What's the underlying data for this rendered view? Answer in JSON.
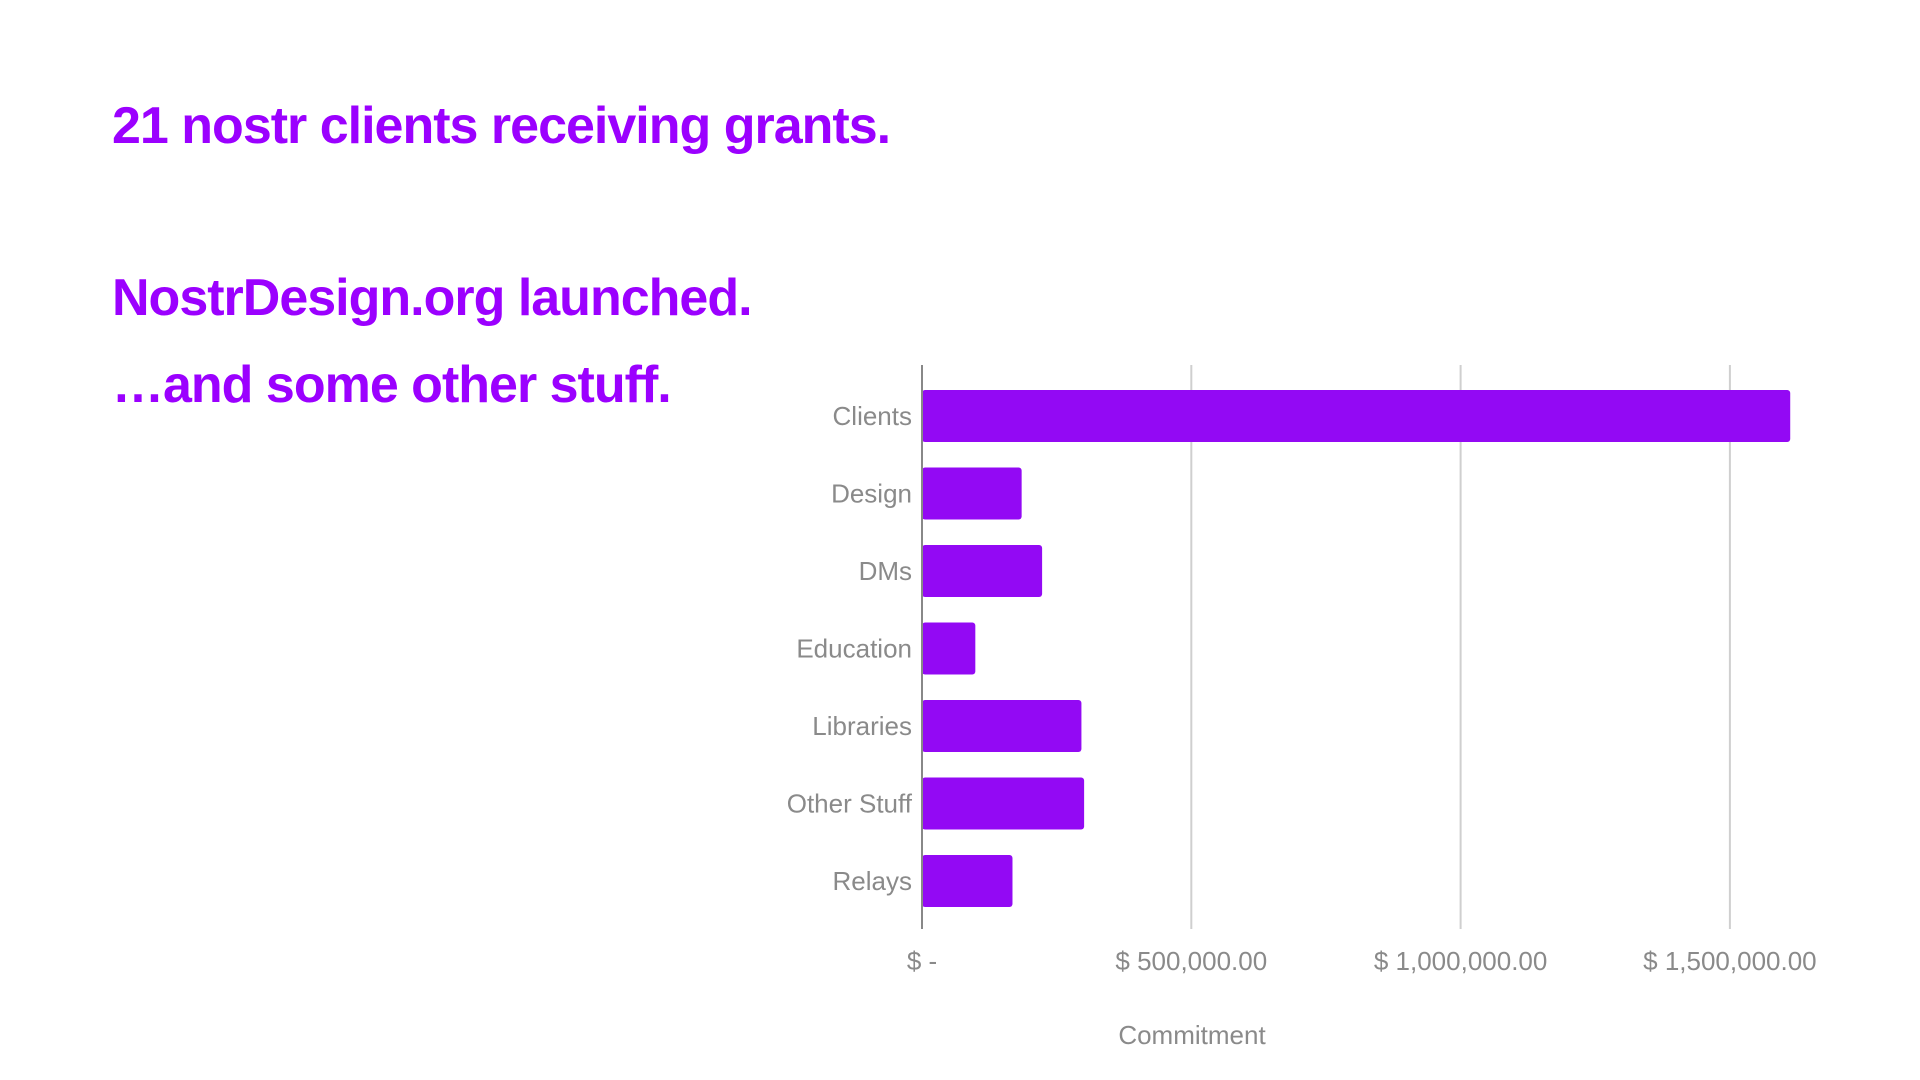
{
  "slide": {
    "line1": "21 nostr clients receiving grants.",
    "line2": "NostrDesign.org launched.",
    "line3": "…and some other stuff.",
    "text_color": "#9b00ff"
  },
  "chart_data": {
    "type": "bar",
    "orientation": "horizontal",
    "categories": [
      "Clients",
      "Design",
      "DMs",
      "Education",
      "Libraries",
      "Other Stuff",
      "Relays"
    ],
    "values": [
      1612000,
      185000,
      223000,
      99000,
      296000,
      301000,
      168000
    ],
    "xlabel": "Commitment",
    "ylabel": "",
    "xlim": [
      0,
      1500000
    ],
    "x_ticks": [
      0,
      500000,
      1000000,
      1500000
    ],
    "x_tick_labels": [
      "$ -",
      "$ 500,000.00",
      "$ 1,000,000.00",
      "$ 1,500,000.00"
    ],
    "grid": "vertical",
    "bar_color": "#9309f4"
  }
}
